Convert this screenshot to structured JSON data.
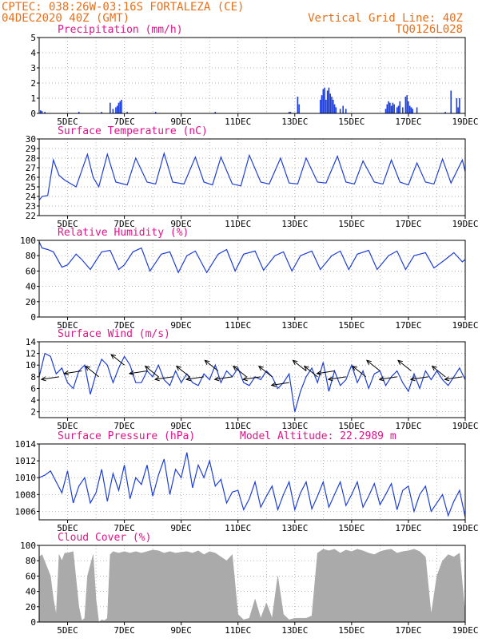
{
  "header": {
    "line1": "CPTEC:   038:26W-03:16S  FORTALEZA (CE)",
    "line2": "04DEC2020 40Z (GMT)",
    "grid_note": "Vertical Grid Line: 40Z",
    "code": "TQ0126L028"
  },
  "colors": {
    "header": "#e8701a",
    "panel_title": "#e0148a",
    "line": "#1f3fd6",
    "cloud": "#aaaaaa",
    "arrow": "#000000"
  },
  "x_ticks": [
    "5DEC",
    "7DEC",
    "9DEC",
    "11DEC",
    "13DEC",
    "15DEC",
    "17DEC",
    "19DEC"
  ],
  "chart_data": [
    {
      "id": "precip",
      "type": "bar",
      "title": "Precipitation (mm/h)",
      "ylim": [
        0,
        5
      ],
      "yticks": [
        "0",
        "1",
        "2",
        "3",
        "4",
        "5"
      ],
      "grid": true,
      "x_range_days": [
        4.0,
        19.0
      ],
      "x": [
        4.05,
        4.1,
        4.2,
        5.4,
        6.2,
        6.5,
        6.6,
        6.7,
        6.75,
        6.8,
        6.85,
        6.9,
        7.1,
        8.1,
        10.2,
        12.8,
        12.85,
        13.1,
        13.15,
        13.9,
        13.95,
        14.0,
        14.05,
        14.1,
        14.15,
        14.2,
        14.25,
        14.3,
        14.35,
        14.4,
        14.45,
        14.6,
        14.7,
        14.8,
        16.2,
        16.25,
        16.3,
        16.35,
        16.4,
        16.45,
        16.5,
        16.6,
        16.65,
        16.7,
        16.8,
        16.9,
        16.95,
        17.0,
        17.05,
        17.1,
        17.15,
        17.3,
        18.3,
        18.5,
        18.7,
        18.75,
        18.8
      ],
      "values": [
        0.2,
        0.15,
        0.1,
        0.1,
        0.1,
        0.7,
        0.3,
        0.4,
        0.5,
        0.7,
        0.8,
        0.9,
        0.1,
        0.1,
        0.1,
        0.1,
        0.1,
        1.1,
        0.6,
        0.9,
        1.2,
        1.6,
        1.7,
        0.9,
        1.5,
        1.7,
        1.3,
        1.1,
        0.9,
        0.6,
        0.4,
        0.3,
        0.5,
        0.3,
        0.3,
        0.6,
        0.8,
        0.7,
        0.5,
        0.7,
        0.6,
        0.4,
        0.5,
        0.8,
        0.4,
        1.1,
        1.2,
        0.8,
        0.5,
        0.4,
        0.3,
        0.4,
        0.1,
        1.5,
        1.0,
        0.4,
        1.0
      ]
    },
    {
      "id": "temp",
      "type": "line",
      "title": "Surface Temperature (nC)",
      "ylim": [
        22,
        30
      ],
      "yticks": [
        "22",
        "23",
        "24",
        "25",
        "26",
        "27",
        "28",
        "29",
        "30"
      ],
      "grid": true,
      "x": [
        4.0,
        4.1,
        4.3,
        4.5,
        4.7,
        4.9,
        5.3,
        5.7,
        5.9,
        6.1,
        6.4,
        6.7,
        7.1,
        7.4,
        7.8,
        8.1,
        8.4,
        8.7,
        9.1,
        9.5,
        9.8,
        10.1,
        10.4,
        10.8,
        11.1,
        11.4,
        11.8,
        12.1,
        12.5,
        12.8,
        13.1,
        13.4,
        13.8,
        14.1,
        14.5,
        14.8,
        15.1,
        15.4,
        15.8,
        16.1,
        16.4,
        16.7,
        17.0,
        17.3,
        17.6,
        17.9,
        18.2,
        18.5,
        18.9,
        19.0
      ],
      "values": [
        23.6,
        24.0,
        24.1,
        27.8,
        26.2,
        25.7,
        25.0,
        28.4,
        26.0,
        25.0,
        28.4,
        25.5,
        25.2,
        28.0,
        25.5,
        25.3,
        28.5,
        25.5,
        25.3,
        28.1,
        25.5,
        25.2,
        28.1,
        25.3,
        25.1,
        28.3,
        25.5,
        25.3,
        28.0,
        25.4,
        25.3,
        28.0,
        25.5,
        25.4,
        28.2,
        25.5,
        25.3,
        27.7,
        25.5,
        25.3,
        27.8,
        25.5,
        25.2,
        27.5,
        25.5,
        25.3,
        27.9,
        25.4,
        27.8,
        26.6
      ]
    },
    {
      "id": "rh",
      "type": "line",
      "title": "Relative Humidity (%)",
      "ylim": [
        0,
        100
      ],
      "yticks": [
        "0",
        "20",
        "40",
        "60",
        "80",
        "100"
      ],
      "grid": true,
      "x": [
        4.0,
        4.1,
        4.3,
        4.5,
        4.8,
        5.0,
        5.3,
        5.5,
        5.8,
        6.2,
        6.5,
        6.8,
        7.0,
        7.3,
        7.6,
        7.9,
        8.3,
        8.6,
        8.9,
        9.2,
        9.5,
        9.9,
        10.3,
        10.6,
        10.9,
        11.2,
        11.6,
        11.9,
        12.3,
        12.6,
        12.9,
        13.2,
        13.6,
        13.9,
        14.3,
        14.6,
        14.9,
        15.2,
        15.6,
        15.9,
        16.3,
        16.6,
        16.9,
        17.2,
        17.6,
        17.9,
        18.3,
        18.6,
        18.9,
        19.0
      ],
      "values": [
        98,
        90,
        88,
        85,
        65,
        68,
        82,
        75,
        62,
        85,
        87,
        62,
        68,
        85,
        90,
        60,
        82,
        85,
        58,
        80,
        86,
        58,
        82,
        88,
        60,
        82,
        86,
        61,
        80,
        85,
        60,
        80,
        86,
        62,
        80,
        86,
        62,
        82,
        87,
        62,
        80,
        86,
        62,
        80,
        84,
        64,
        75,
        84,
        72,
        75
      ]
    },
    {
      "id": "wind",
      "type": "line",
      "title": "Surface Wind (m/s)",
      "ylim": [
        1,
        14
      ],
      "yticks": [
        "2",
        "4",
        "6",
        "8",
        "10",
        "12",
        "14"
      ],
      "grid": true,
      "x": [
        4.0,
        4.2,
        4.4,
        4.6,
        4.8,
        5.0,
        5.2,
        5.4,
        5.6,
        5.8,
        6.0,
        6.2,
        6.4,
        6.6,
        6.8,
        7.0,
        7.2,
        7.4,
        7.6,
        7.8,
        8.0,
        8.2,
        8.4,
        8.6,
        8.8,
        9.0,
        9.2,
        9.4,
        9.6,
        9.8,
        10.0,
        10.2,
        10.4,
        10.6,
        10.8,
        11.0,
        11.2,
        11.4,
        11.6,
        11.8,
        12.0,
        12.2,
        12.4,
        12.6,
        12.8,
        13.0,
        13.2,
        13.4,
        13.6,
        13.8,
        14.0,
        14.2,
        14.4,
        14.6,
        14.8,
        15.0,
        15.2,
        15.4,
        15.6,
        15.8,
        16.0,
        16.2,
        16.4,
        16.6,
        16.8,
        17.0,
        17.2,
        17.4,
        17.6,
        17.8,
        18.0,
        18.2,
        18.4,
        18.6,
        18.8,
        19.0
      ],
      "values": [
        8,
        12,
        11.5,
        8.5,
        9.5,
        7,
        6,
        9,
        10,
        5,
        8.5,
        11,
        10,
        7,
        9.5,
        11.5,
        10,
        7,
        7,
        9,
        8,
        10,
        7.5,
        6.5,
        9,
        7,
        8.5,
        7,
        6.5,
        8.5,
        7.5,
        10,
        7,
        9,
        8,
        9.5,
        7,
        6.5,
        8,
        7.5,
        9,
        8,
        6,
        7,
        8.5,
        2,
        5.5,
        8,
        9.5,
        7,
        10.5,
        5.5,
        9,
        6.5,
        7.5,
        10,
        7,
        9,
        6,
        8.5,
        9,
        6.5,
        8,
        9,
        7,
        5.5,
        8.5,
        6,
        9,
        7.5,
        9,
        7.5,
        6.5,
        8,
        9.5,
        7.5
      ],
      "arrows": [
        {
          "day": 4.7,
          "speed": 8,
          "dir": "W"
        },
        {
          "day": 5.5,
          "speed": 9,
          "dir": "W"
        },
        {
          "day": 6.1,
          "speed": 8,
          "dir": "NW"
        },
        {
          "day": 7.0,
          "speed": 10,
          "dir": "NW"
        },
        {
          "day": 7.8,
          "speed": 9,
          "dir": "W"
        },
        {
          "day": 8.2,
          "speed": 8,
          "dir": "NW"
        },
        {
          "day": 8.7,
          "speed": 8,
          "dir": "W"
        },
        {
          "day": 9.3,
          "speed": 8,
          "dir": "NW"
        },
        {
          "day": 9.8,
          "speed": 8,
          "dir": "W"
        },
        {
          "day": 10.3,
          "speed": 9,
          "dir": "NW"
        },
        {
          "day": 10.8,
          "speed": 8,
          "dir": "W"
        },
        {
          "day": 11.3,
          "speed": 8,
          "dir": "NW"
        },
        {
          "day": 11.8,
          "speed": 8,
          "dir": "W"
        },
        {
          "day": 12.2,
          "speed": 8,
          "dir": "NW"
        },
        {
          "day": 12.8,
          "speed": 7,
          "dir": "W"
        },
        {
          "day": 13.4,
          "speed": 9,
          "dir": "NW"
        },
        {
          "day": 13.8,
          "speed": 8,
          "dir": "NW"
        },
        {
          "day": 14.4,
          "speed": 9,
          "dir": "W"
        },
        {
          "day": 14.8,
          "speed": 8,
          "dir": "W"
        },
        {
          "day": 15.5,
          "speed": 8,
          "dir": "NW"
        },
        {
          "day": 16.0,
          "speed": 9,
          "dir": "NW"
        },
        {
          "day": 16.6,
          "speed": 8,
          "dir": "W"
        },
        {
          "day": 17.1,
          "speed": 9,
          "dir": "NW"
        },
        {
          "day": 17.7,
          "speed": 8,
          "dir": "W"
        },
        {
          "day": 18.3,
          "speed": 8,
          "dir": "NW"
        },
        {
          "day": 18.9,
          "speed": 8,
          "dir": "W"
        }
      ]
    },
    {
      "id": "pressure",
      "type": "line",
      "title": "Surface Pressure (hPa)",
      "subtitle": "Model Altitude: 22.2989 m",
      "ylim": [
        1005,
        1014
      ],
      "yticks": [
        "1006",
        "1008",
        "1010",
        "1012",
        "1014"
      ],
      "grid": true,
      "x": [
        4.0,
        4.2,
        4.4,
        4.6,
        4.8,
        5.0,
        5.2,
        5.4,
        5.6,
        5.8,
        6.0,
        6.2,
        6.4,
        6.6,
        6.8,
        7.0,
        7.2,
        7.4,
        7.6,
        7.8,
        8.0,
        8.2,
        8.4,
        8.6,
        8.8,
        9.0,
        9.2,
        9.4,
        9.6,
        9.8,
        10.0,
        10.2,
        10.4,
        10.6,
        10.8,
        11.0,
        11.2,
        11.4,
        11.6,
        11.8,
        12.0,
        12.2,
        12.4,
        12.6,
        12.8,
        13.0,
        13.2,
        13.4,
        13.6,
        13.8,
        14.0,
        14.2,
        14.4,
        14.6,
        14.8,
        15.0,
        15.2,
        15.4,
        15.6,
        15.8,
        16.0,
        16.2,
        16.4,
        16.6,
        16.8,
        17.0,
        17.2,
        17.4,
        17.6,
        17.8,
        18.0,
        18.2,
        18.4,
        18.6,
        18.8,
        19.0
      ],
      "values": [
        1010,
        1010.3,
        1010.8,
        1009.5,
        1008.2,
        1010.8,
        1007,
        1009,
        1010,
        1007,
        1008.2,
        1011,
        1007.2,
        1010.5,
        1008.5,
        1011.5,
        1007.5,
        1010,
        1009.2,
        1011.5,
        1007.8,
        1010.3,
        1012.2,
        1008,
        1011,
        1010,
        1013,
        1008.8,
        1011.5,
        1010,
        1012,
        1009,
        1009.8,
        1007,
        1008.3,
        1008.5,
        1006.2,
        1007.5,
        1009.5,
        1006.5,
        1007.8,
        1009,
        1006.2,
        1008,
        1009.5,
        1006.2,
        1008.2,
        1009.5,
        1006.3,
        1007.8,
        1009.5,
        1006.5,
        1008,
        1009.5,
        1006.7,
        1008,
        1009.5,
        1006.5,
        1007.8,
        1009.3,
        1006.8,
        1008,
        1009.3,
        1006.2,
        1008.5,
        1009,
        1006,
        1008,
        1009,
        1006,
        1007,
        1008,
        1005.5,
        1007.2,
        1008.5,
        1005.3
      ],
      "ylim_plot": [
        1005,
        1014
      ]
    },
    {
      "id": "cloud",
      "type": "area",
      "title": "Cloud Cover (%)",
      "ylim": [
        0,
        100
      ],
      "yticks": [
        "0",
        "20",
        "40",
        "60",
        "80",
        "100"
      ],
      "grid": true,
      "x": [
        4.0,
        4.1,
        4.4,
        4.5,
        4.6,
        4.7,
        4.8,
        4.9,
        5.0,
        5.2,
        5.4,
        5.5,
        5.6,
        5.7,
        5.9,
        6.0,
        6.1,
        6.2,
        6.3,
        6.4,
        6.5,
        6.6,
        6.8,
        7.0,
        7.2,
        7.4,
        7.6,
        7.8,
        8.0,
        8.2,
        8.4,
        8.6,
        8.8,
        9.0,
        9.2,
        9.4,
        9.6,
        9.8,
        10.0,
        10.2,
        10.4,
        10.6,
        10.8,
        11.0,
        11.2,
        11.4,
        11.6,
        11.8,
        12.0,
        12.2,
        12.4,
        12.6,
        12.8,
        13.0,
        13.2,
        13.4,
        13.6,
        13.8,
        14.0,
        14.2,
        14.4,
        14.6,
        14.8,
        15.0,
        15.2,
        15.4,
        15.6,
        15.8,
        16.0,
        16.2,
        16.4,
        16.6,
        16.8,
        17.0,
        17.2,
        17.4,
        17.6,
        17.8,
        18.0,
        18.2,
        18.4,
        18.6,
        18.8,
        19.0
      ],
      "values": [
        85,
        88,
        60,
        30,
        10,
        88,
        80,
        90,
        90,
        92,
        20,
        2,
        5,
        60,
        88,
        30,
        0,
        3,
        2,
        5,
        88,
        92,
        90,
        92,
        90,
        92,
        90,
        92,
        94,
        93,
        90,
        92,
        90,
        91,
        92,
        90,
        93,
        88,
        92,
        90,
        85,
        80,
        88,
        10,
        3,
        5,
        30,
        5,
        25,
        5,
        60,
        10,
        3,
        5,
        5,
        5,
        8,
        90,
        95,
        93,
        95,
        90,
        94,
        92,
        95,
        93,
        90,
        88,
        92,
        94,
        95,
        90,
        92,
        93,
        95,
        92,
        85,
        10,
        60,
        80,
        88,
        85,
        90,
        10
      ]
    }
  ]
}
